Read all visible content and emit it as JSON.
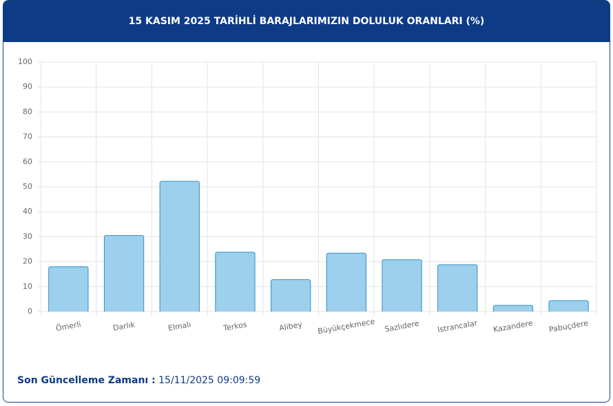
{
  "chart_data": {
    "type": "bar",
    "title": "15 KASIM 2025 TARİHLİ BARAJLARIMIZIN DOLULUK ORANLARI (%)",
    "categories": [
      "Ömerli",
      "Darlık",
      "Elmalı",
      "Terkos",
      "Alibey",
      "Büyükçekmece",
      "Sazlıdere",
      "Istrancalar",
      "Kazandere",
      "Pabuçdere"
    ],
    "values": [
      18,
      30.5,
      52.2,
      23.8,
      12.8,
      23.4,
      20.8,
      18.8,
      2.5,
      4.4
    ],
    "color": "#9dd0ec",
    "ylim": [
      0,
      100
    ],
    "yticks": [
      0,
      10,
      20,
      30,
      40,
      50,
      60,
      70,
      80,
      90,
      100
    ],
    "grid": true
  },
  "footer": {
    "label": "Son Güncelleme Zamanı :",
    "value": "15/11/2025 09:09:59"
  }
}
